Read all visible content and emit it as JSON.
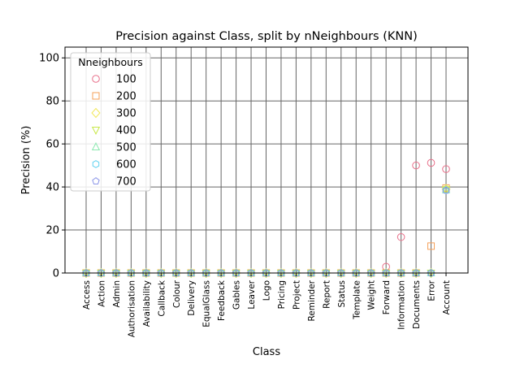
{
  "chart_data": {
    "type": "scatter",
    "title": "Precision against Class, split by nNeighbours (KNN)",
    "xlabel": "Class",
    "ylabel": "Precision (%)",
    "ylim": [
      0,
      105
    ],
    "yticks": [
      0,
      20,
      40,
      60,
      80,
      100
    ],
    "grid": true,
    "legend": {
      "title": "Nneighbours",
      "placement": "upper-left"
    },
    "categories": [
      "Access",
      "Action",
      "Admin",
      "Authorisation",
      "Availability",
      "Callback",
      "Colour",
      "Delivery",
      "EqualGlass",
      "Feedback",
      "Gables",
      "Leaver",
      "Logo",
      "Pricing",
      "Project",
      "Reminder",
      "Report",
      "Status",
      "Template",
      "Weight",
      "Forward",
      "Information",
      "Documents",
      "Error",
      "Account"
    ],
    "series": [
      {
        "name": "100",
        "marker": "circle",
        "color": "#e8708a",
        "values": [
          0,
          0,
          0,
          0,
          0,
          0,
          0,
          0,
          0,
          0,
          0,
          0,
          0,
          0,
          0,
          0,
          0,
          0,
          0,
          0,
          2.9,
          16.7,
          50,
          51.2,
          48.3
        ]
      },
      {
        "name": "200",
        "marker": "square",
        "color": "#f5a05a",
        "values": [
          0,
          0,
          0,
          0,
          0,
          0,
          0,
          0,
          0,
          0,
          0,
          0,
          0,
          0,
          0,
          0,
          0,
          0,
          0,
          0,
          0,
          0,
          0,
          12.5,
          39.5
        ]
      },
      {
        "name": "300",
        "marker": "diamond",
        "color": "#f2e85a",
        "values": [
          0,
          0,
          0,
          0,
          0,
          0,
          0,
          0,
          0,
          0,
          0,
          0,
          0,
          0,
          0,
          0,
          0,
          0,
          0,
          0,
          0,
          0,
          0,
          0,
          39
        ]
      },
      {
        "name": "400",
        "marker": "triangle-down",
        "color": "#c8e84a",
        "values": [
          0,
          0,
          0,
          0,
          0,
          0,
          0,
          0,
          0,
          0,
          0,
          0,
          0,
          0,
          0,
          0,
          0,
          0,
          0,
          0,
          0,
          0,
          0,
          0,
          38.8
        ]
      },
      {
        "name": "500",
        "marker": "triangle-up",
        "color": "#8ce8b0",
        "values": [
          0,
          0,
          0,
          0,
          0,
          0,
          0,
          0,
          0,
          0,
          0,
          0,
          0,
          0,
          0,
          0,
          0,
          0,
          0,
          0,
          0,
          0,
          0,
          0,
          38.6
        ]
      },
      {
        "name": "600",
        "marker": "hexagon",
        "color": "#5fd2f0",
        "values": [
          0,
          0,
          0,
          0,
          0,
          0,
          0,
          0,
          0,
          0,
          0,
          0,
          0,
          0,
          0,
          0,
          0,
          0,
          0,
          0,
          0,
          0,
          0,
          0,
          38.5
        ]
      },
      {
        "name": "700",
        "marker": "pentagon",
        "color": "#8c96e8",
        "values": [
          0,
          0,
          0,
          0,
          0,
          0,
          0,
          0,
          0,
          0,
          0,
          0,
          0,
          0,
          0,
          0,
          0,
          0,
          0,
          0,
          0,
          0,
          0,
          0,
          38.4
        ]
      }
    ]
  }
}
